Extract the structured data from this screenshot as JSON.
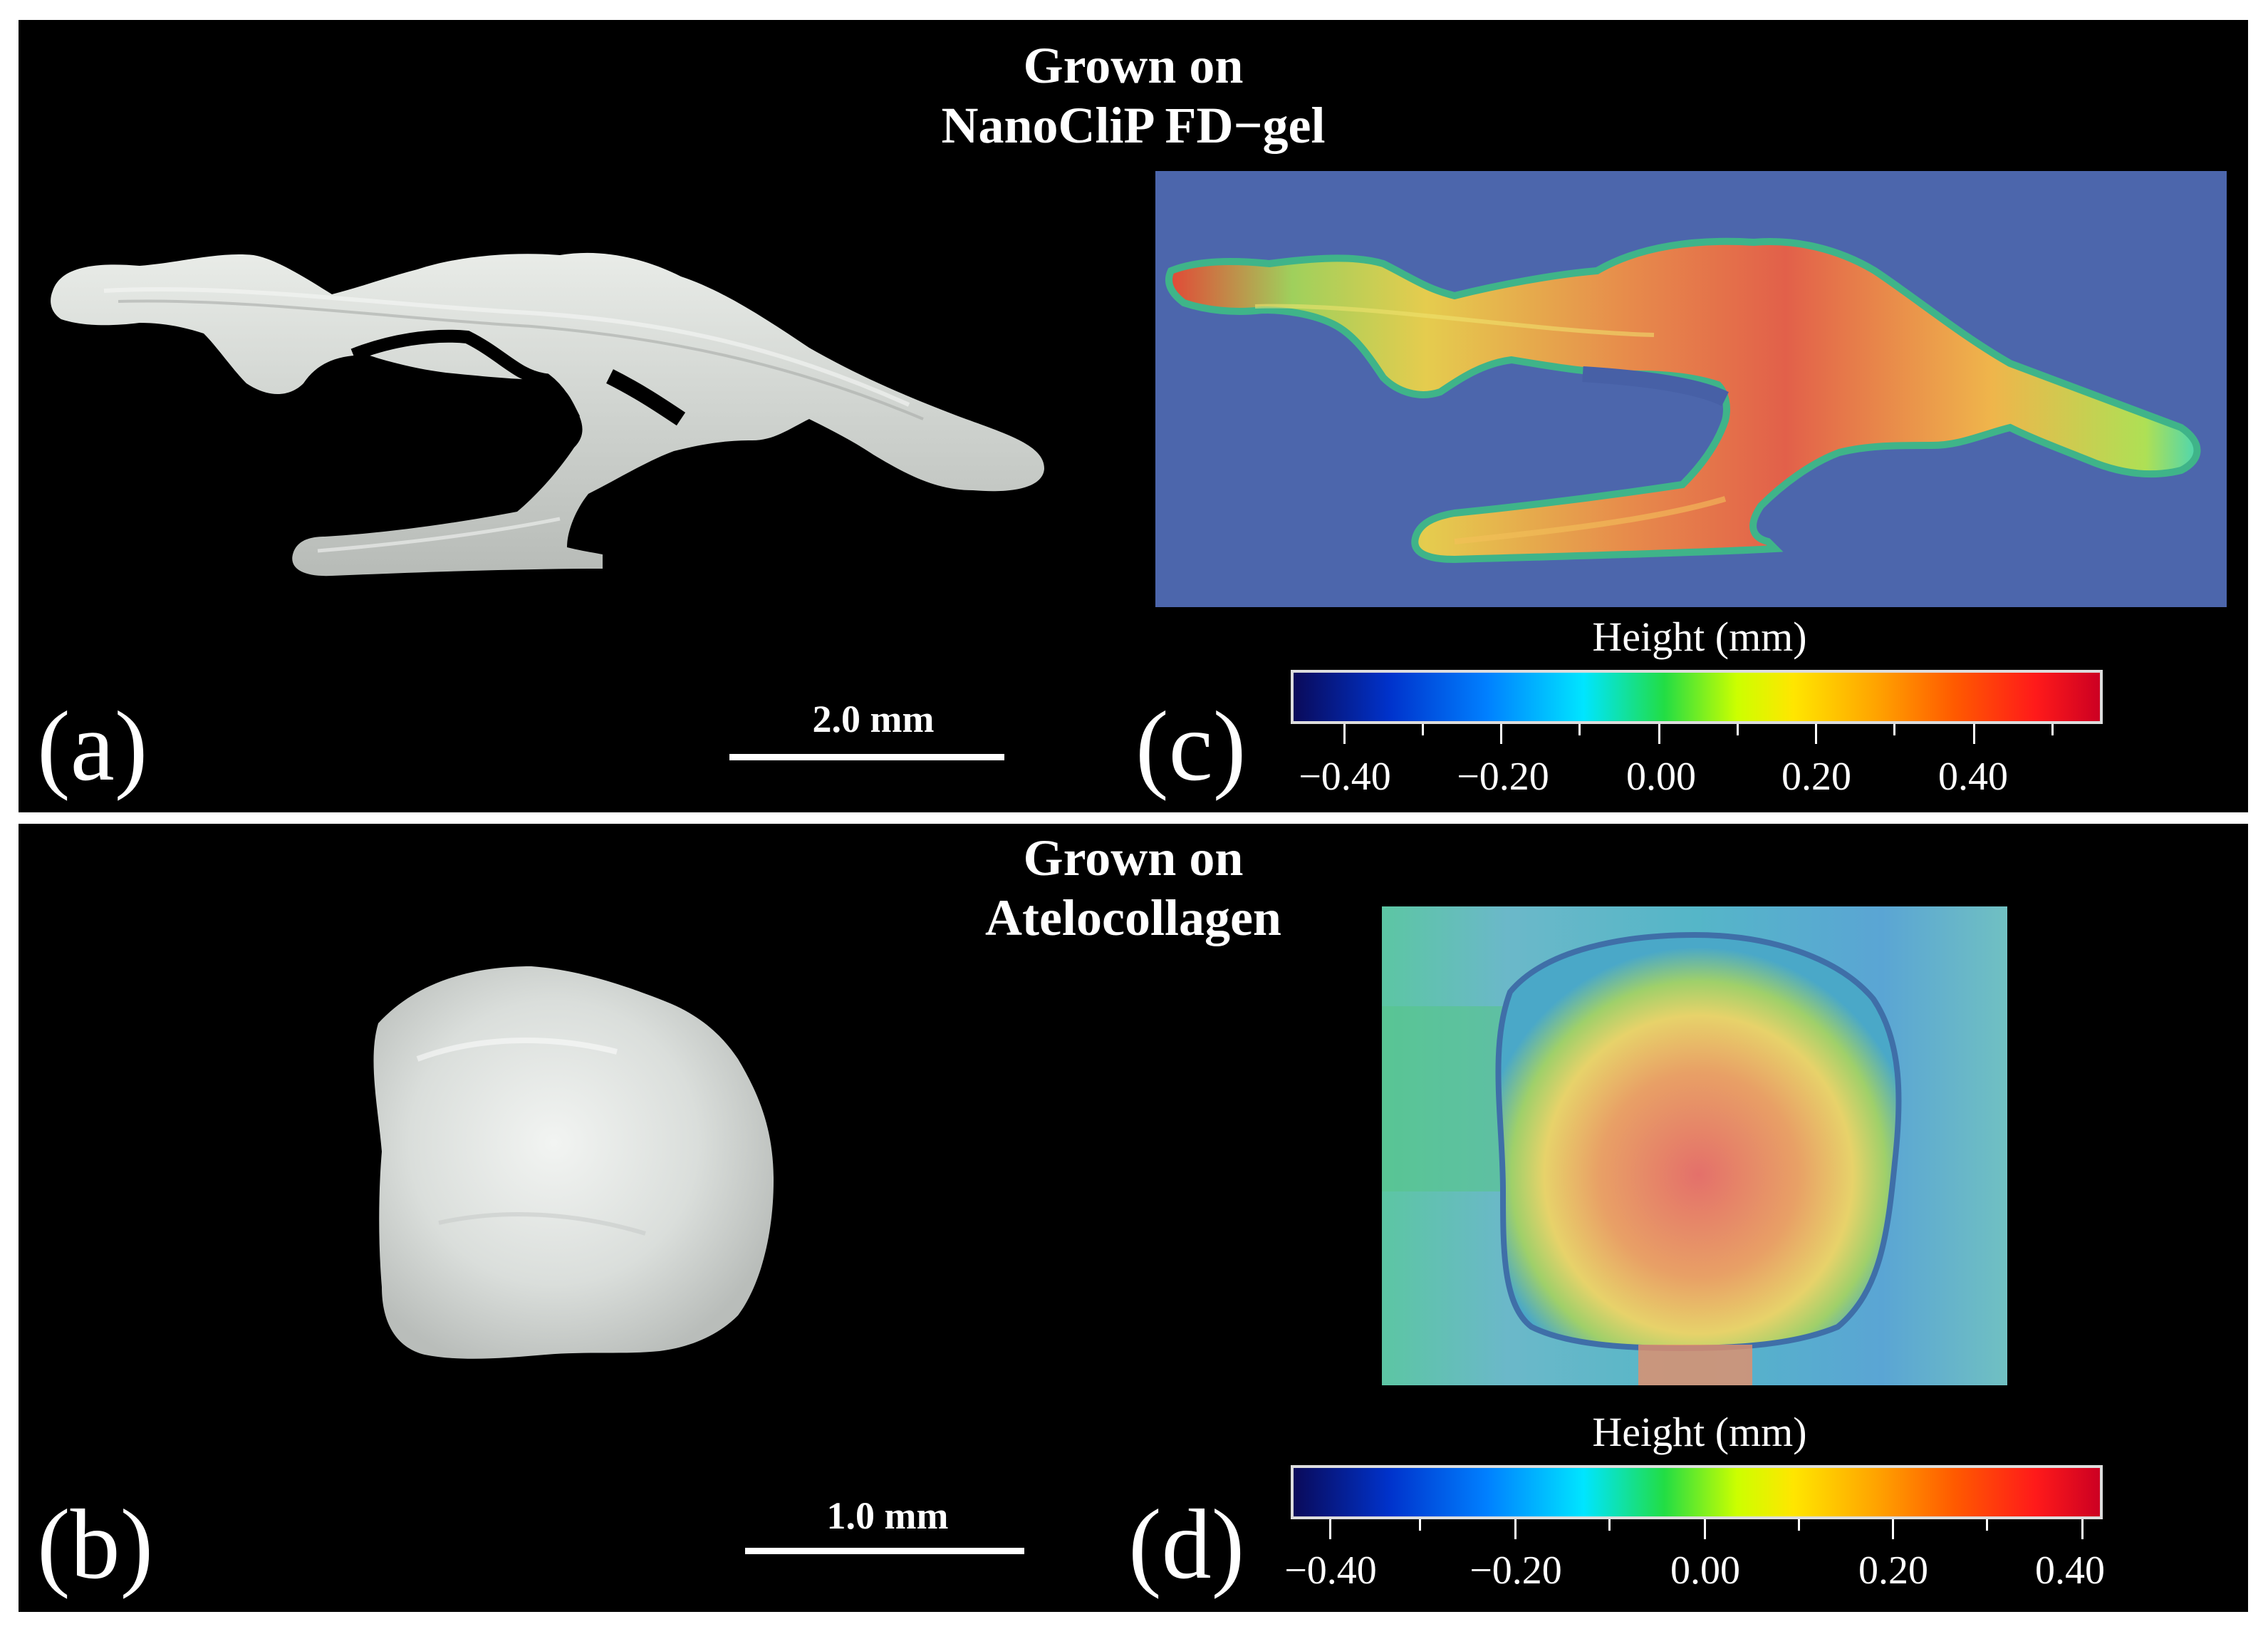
{
  "panels": {
    "top": {
      "title_line1": "Grown on",
      "title_line2": "NanoCliP FD−gel",
      "label_photo": "(a)",
      "label_height_map": "(c)",
      "scale_bar": "2.0 mm",
      "colorbar": {
        "title": "Height (mm)",
        "ticks": [
          "−0.40",
          "−0.20",
          "0.00",
          "0.20",
          "0.40"
        ]
      }
    },
    "bottom": {
      "title_line1": "Grown on",
      "title_line2": "Atelocollagen",
      "label_photo": "(b)",
      "label_height_map": "(d)",
      "scale_bar": "1.0 mm",
      "colorbar": {
        "title": "Height (mm)",
        "ticks": [
          "−0.40",
          "−0.20",
          "0.00",
          "0.20",
          "0.40"
        ]
      }
    }
  }
}
